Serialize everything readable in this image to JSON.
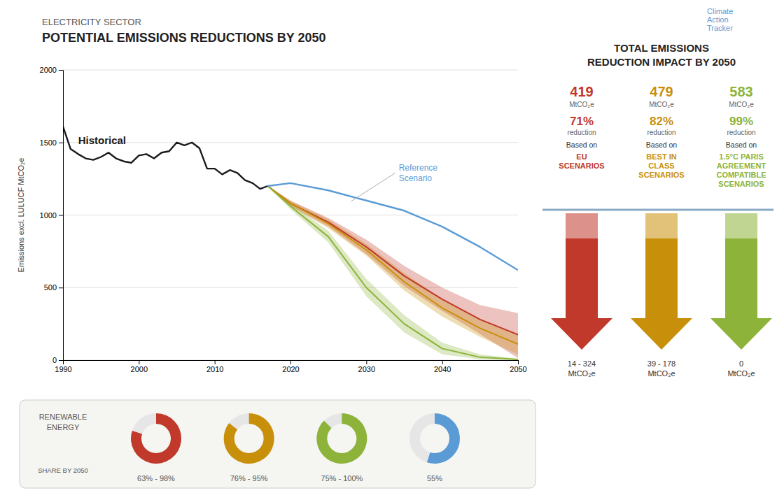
{
  "chart_data": [
    {
      "type": "line",
      "subtitle": "ELECTRICITY SECTOR",
      "title": "POTENTIAL EMISSIONS REDUCTIONS BY 2050",
      "y_label": "Emissions excl. LULUCF MtCO₂e",
      "xlim": [
        1990,
        2050
      ],
      "ylim": [
        0,
        2000
      ],
      "xticks": [
        1990,
        2000,
        2010,
        2020,
        2030,
        2040,
        2050
      ],
      "yticks": [
        0,
        500,
        1000,
        1500,
        2000
      ],
      "grid": true,
      "series": [
        {
          "type": "line",
          "color": "#1a1a1a",
          "x": [
            1990,
            1991,
            1992,
            1993,
            1994,
            1995,
            1996,
            1997,
            1998,
            1999,
            2000,
            2001,
            2002,
            2003,
            2004,
            2005,
            2006,
            2007,
            2008,
            2009,
            2010,
            2011,
            2012,
            2013,
            2014,
            2015,
            2016,
            2017
          ],
          "values": [
            1610,
            1455,
            1420,
            1390,
            1380,
            1400,
            1430,
            1390,
            1370,
            1360,
            1410,
            1420,
            1390,
            1430,
            1440,
            1500,
            1480,
            1500,
            1460,
            1320,
            1320,
            1280,
            1310,
            1290,
            1240,
            1220,
            1180,
            1200
          ]
        },
        {
          "type": "line",
          "color": "#5b9bd5",
          "x": [
            2017,
            2020,
            2025,
            2030,
            2035,
            2040,
            2045,
            2050
          ],
          "values": [
            1200,
            1220,
            1170,
            1100,
            1030,
            920,
            780,
            620
          ]
        },
        {
          "type": "band",
          "color": "#c0392b",
          "x": [
            2017,
            2020,
            2025,
            2030,
            2035,
            2040,
            2045,
            2050
          ],
          "values": [
            1200,
            1080,
            950,
            780,
            580,
            420,
            280,
            175
          ],
          "lower": [
            1200,
            1060,
            920,
            730,
            510,
            340,
            180,
            14
          ],
          "upper": [
            1200,
            1100,
            980,
            830,
            650,
            500,
            380,
            324
          ]
        },
        {
          "type": "band",
          "color": "#c8900a",
          "x": [
            2017,
            2020,
            2025,
            2030,
            2035,
            2040,
            2045,
            2050
          ],
          "values": [
            1200,
            1080,
            940,
            760,
            540,
            360,
            220,
            110
          ],
          "lower": [
            1200,
            1060,
            910,
            720,
            480,
            300,
            160,
            39
          ],
          "upper": [
            1200,
            1100,
            970,
            800,
            600,
            420,
            280,
            178
          ]
        },
        {
          "type": "band",
          "color": "#8db33a",
          "x": [
            2017,
            2020,
            2025,
            2030,
            2035,
            2040,
            2045,
            2050
          ],
          "values": [
            1200,
            1060,
            850,
            500,
            250,
            80,
            20,
            5
          ],
          "lower": [
            1200,
            1040,
            810,
            440,
            190,
            40,
            5,
            0
          ],
          "upper": [
            1200,
            1080,
            890,
            560,
            310,
            120,
            40,
            10
          ]
        }
      ],
      "annotations": [
        {
          "text": "Historical",
          "x": 1992,
          "y": 1490,
          "color": "#1a1a1a"
        },
        {
          "text": "Reference\nScenario",
          "x": 2034,
          "y": 1290,
          "arrow_x": 2028,
          "arrow_y": 1095,
          "color": "#5b9bd5"
        }
      ]
    },
    {
      "type": "summary",
      "title": "TOTAL EMISSIONS",
      "subtitle": "REDUCTION IMPACT BY 2050",
      "categories": [
        "EU\nSCENARIOS",
        "BEST IN\nCLASS\nSCENARIOS",
        "1.5°C PARIS\nAGREEMENT\nCOMPATIBLE\nSCENARIOS"
      ],
      "colors": [
        "#c0392b",
        "#c8900a",
        "#8db33a"
      ],
      "values": [
        419,
        479,
        583
      ],
      "data_labels": true,
      "units": [
        "MtCO₂e",
        "MtCO₂e",
        "MtCO₂e"
      ],
      "reduction_labels": [
        "71%",
        "82%",
        "99%"
      ],
      "reduction_texts": [
        "reduction",
        "reduction",
        "reduction"
      ],
      "based_on": [
        "Based on",
        "Based on",
        "Based on"
      ],
      "ranges": [
        "14 - 324\nMtCO₂e",
        "39 - 178\nMtCO₂e",
        "0\nMtCO₂e"
      ],
      "annotations": [
        {
          "text": "Climate\nAction\nTracker"
        }
      ]
    },
    {
      "type": "donut",
      "title": "RENEWABLE\nENERGY",
      "subtitle": "SHARE BY 2050",
      "values": [
        80,
        85.5,
        87.5,
        55
      ],
      "value_labels": [
        "63% - 98%",
        "76% - 95%",
        "75% - 100%",
        "55%"
      ],
      "colors": [
        "#c0392b",
        "#c8900a",
        "#8db33a",
        "#5b9bd5"
      ]
    }
  ]
}
